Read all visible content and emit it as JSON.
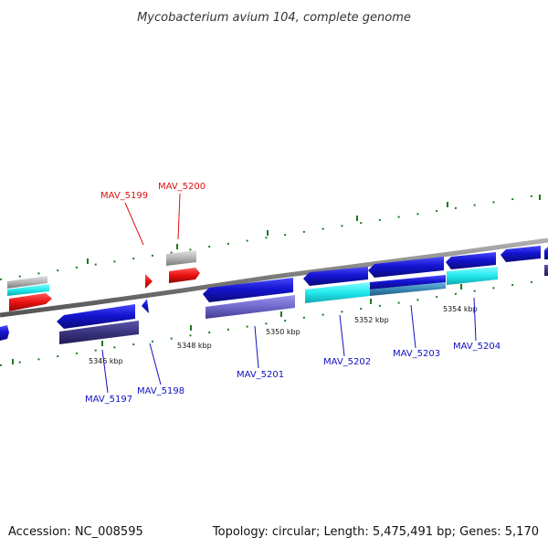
{
  "title": "Mycobacterium avium 104, complete genome",
  "footer": {
    "accession": "Accession: NC_008595",
    "summary": "Topology: circular; Length: 5,475,491 bp; Genes: 5,170"
  },
  "colors": {
    "forward_cds": "#1414d2",
    "reverse_cds": "#1414d2",
    "cog_cyan": "#22e8ec",
    "cog_purple": "#7068cc",
    "cog_darkpurple": "#3a3480",
    "cog_steel": "#3a8ab8",
    "rna": "#e81010",
    "misc_gray": "#b4b4b4",
    "backbone": "#7a7a7a",
    "tick_green": "#1a7a1a",
    "label_blue": "#1010c0",
    "label_red": "#e01010"
  },
  "ticks": [
    {
      "label": "5346 kbp"
    },
    {
      "label": "5348 kbp"
    },
    {
      "label": "5350 kbp"
    },
    {
      "label": "5352 kbp"
    },
    {
      "label": "5354 kbp"
    }
  ],
  "gene_labels": [
    {
      "text": "MAV_5199",
      "color": "red"
    },
    {
      "text": "MAV_5200",
      "color": "red"
    },
    {
      "text": "MAV_5197",
      "color": "blue"
    },
    {
      "text": "MAV_5198",
      "color": "blue"
    },
    {
      "text": "MAV_5201",
      "color": "blue"
    },
    {
      "text": "MAV_5202",
      "color": "blue"
    },
    {
      "text": "MAV_5203",
      "color": "blue"
    },
    {
      "text": "MAV_5204",
      "color": "blue"
    }
  ]
}
